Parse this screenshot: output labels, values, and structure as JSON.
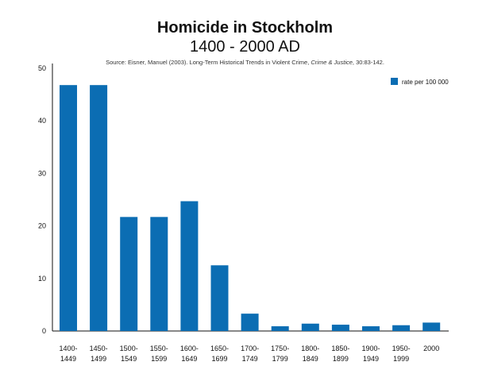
{
  "chart_data": {
    "type": "bar",
    "title": "Homicide in Stockholm",
    "subtitle": "1400 - 2000 AD",
    "source": {
      "prefix": "Source:  Eisner, Manuel (2003). Long-Term Historical Trends in Violent Crime,",
      "journal": "Crime & Justice",
      "suffix": ", 30:83-142."
    },
    "categories": [
      [
        "1400-",
        "1449"
      ],
      [
        "1450-",
        "1499"
      ],
      [
        "1500-",
        "1549"
      ],
      [
        "1550-",
        "1599"
      ],
      [
        "1600-",
        "1649"
      ],
      [
        "1650-",
        "1699"
      ],
      [
        "1700-",
        "1749"
      ],
      [
        "1750-",
        "1799"
      ],
      [
        "1800-",
        "1849"
      ],
      [
        "1850-",
        "1899"
      ],
      [
        "1900-",
        "1949"
      ],
      [
        "1950-",
        "1999"
      ],
      [
        "2000"
      ]
    ],
    "series": [
      {
        "name": "rate per 100 000",
        "color": "#0b6db3",
        "values": [
          46.8,
          46.8,
          21.7,
          21.7,
          24.7,
          12.5,
          3.3,
          0.9,
          1.4,
          1.2,
          0.9,
          1.1,
          1.6
        ]
      }
    ],
    "ylim": [
      0,
      50
    ],
    "yticks": [
      0,
      10,
      20,
      30,
      40,
      50
    ],
    "grid": false,
    "legend": "top-right"
  }
}
